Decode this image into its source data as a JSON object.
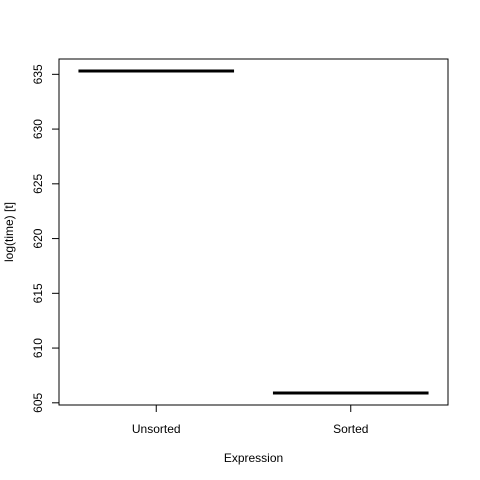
{
  "chart_data": {
    "type": "boxplot",
    "title": "",
    "xlabel": "Expression",
    "ylabel": "log(time) [t]",
    "categories": [
      "Unsorted",
      "Sorted"
    ],
    "medians": [
      635.3,
      605.9
    ],
    "ylim": [
      604.8,
      636.4
    ],
    "yticks": [
      605,
      610,
      615,
      620,
      625,
      630,
      635
    ],
    "ytick_labels": [
      "605",
      "610",
      "615",
      "620",
      "625",
      "630",
      "635"
    ],
    "grid": false,
    "legend": "none"
  }
}
